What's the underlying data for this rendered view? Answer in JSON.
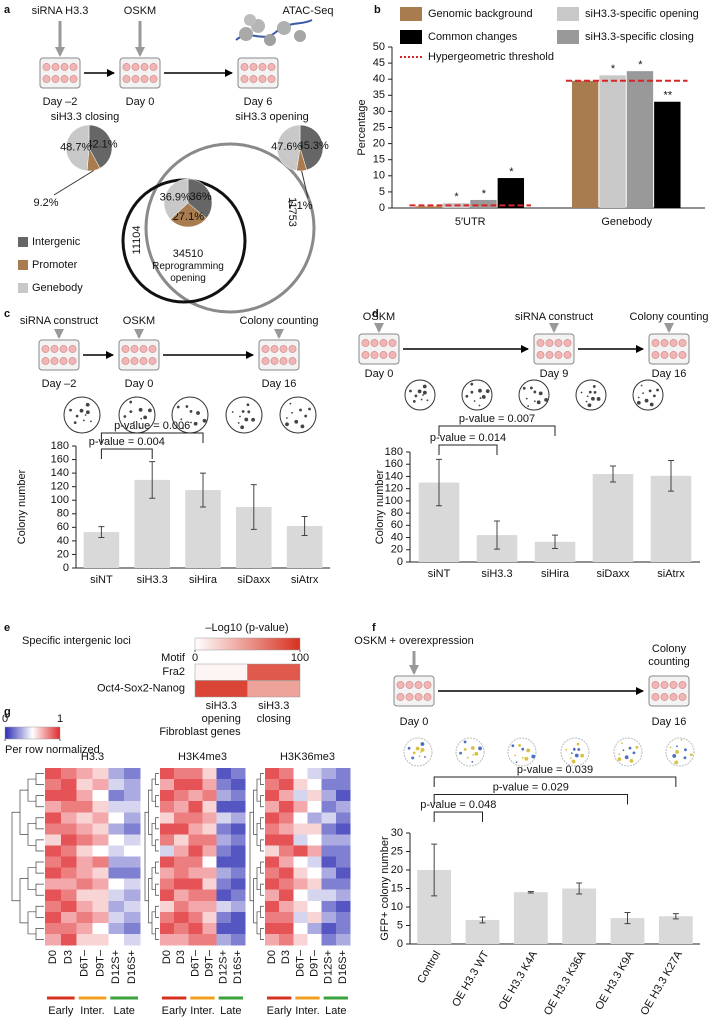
{
  "chart_data": [
    {
      "panel": "a",
      "type": "pie",
      "timeline": [
        {
          "label": "siRNA H3.3",
          "day": "Day –2",
          "color": "#e0402f"
        },
        {
          "label": "OSKM",
          "day": "Day 0",
          "color": "#e0402f"
        },
        {
          "label": "ATAC-Seq",
          "day": "Day 6",
          "color": "#f0a020"
        }
      ],
      "categories": [
        "Intergenic",
        "Promoter",
        "Genebody"
      ],
      "colors": [
        "#666666",
        "#a87c4f",
        "#c8c8c8"
      ],
      "pies": [
        {
          "title": "siH3.3 closing",
          "values": [
            42.1,
            9.2,
            48.7
          ],
          "value_labels": [
            "42.1%",
            "9.2%",
            "48.7%"
          ]
        },
        {
          "title": "siH3.3 opening",
          "values": [
            45.3,
            7.1,
            47.6
          ],
          "value_labels": [
            "45.3%",
            "7.1%",
            "47.6%"
          ]
        },
        {
          "values": [
            36,
            27.1,
            36.9
          ],
          "value_labels": [
            "36%",
            "27.1%",
            "36.9%"
          ]
        }
      ],
      "venn": {
        "counts": [
          11104,
          34510,
          11753
        ],
        "label": "Reprogramming opening"
      }
    },
    {
      "panel": "b",
      "type": "bar",
      "categories": [
        "5′UTR",
        "Genebody"
      ],
      "ylabel": "Percentage",
      "ylim": [
        0,
        50
      ],
      "yticks": [
        0,
        5,
        10,
        15,
        20,
        25,
        30,
        35,
        40,
        45,
        50
      ],
      "series": [
        {
          "name": "Genomic background",
          "color": "#a87c4f",
          "values": [
            0.5,
            39.5
          ]
        },
        {
          "name": "siH3.3-specific opening",
          "color": "#c8c8c8",
          "values": [
            1.5,
            41.2
          ],
          "significance": [
            "*",
            "*"
          ]
        },
        {
          "name": "siH3.3-specific closing",
          "color": "#999999",
          "values": [
            2.5,
            42.5
          ],
          "significance": [
            "*",
            "*"
          ]
        },
        {
          "name": "Common changes",
          "color": "#000000",
          "values": [
            9.3,
            33
          ],
          "significance": [
            "*",
            "**"
          ]
        }
      ],
      "threshold": {
        "name": "Hypergeometric threshold",
        "color": "#d62728",
        "values": [
          0.8,
          39.5
        ]
      }
    },
    {
      "panel": "c",
      "type": "bar",
      "timeline": [
        {
          "label": "siRNA construct",
          "day": "Day –2",
          "color": "#e0402f"
        },
        {
          "label": "OSKM",
          "day": "Day 0",
          "color": "#e0402f"
        },
        {
          "label": "Colony counting",
          "day": "Day 16",
          "color": "#3aa23a"
        }
      ],
      "categories": [
        "siNT",
        "siH3.3",
        "siHira",
        "siDaxx",
        "siAtrx"
      ],
      "values": [
        53,
        130,
        115,
        90,
        62
      ],
      "errors": [
        8,
        27,
        25,
        33,
        14
      ],
      "color": "#d9d9d9",
      "ylabel": "Colony number",
      "ylim": [
        0,
        180
      ],
      "yticks": [
        0,
        20,
        40,
        60,
        80,
        100,
        120,
        140,
        160,
        180
      ],
      "comparisons": [
        {
          "label": "p-value = 0.006",
          "from": "siNT",
          "to": "siHira"
        },
        {
          "label": "p-value = 0.004",
          "from": "siNT",
          "to": "siH3.3"
        }
      ]
    },
    {
      "panel": "d",
      "type": "bar",
      "timeline": [
        {
          "label": "OSKM",
          "day": "Day 0",
          "color": "#e0402f"
        },
        {
          "label": "siRNA construct",
          "day": "Day 9",
          "color": "#f0a020"
        },
        {
          "label": "Colony counting",
          "day": "Day 16",
          "color": "#3aa23a"
        }
      ],
      "categories": [
        "siNT",
        "siH3.3",
        "siHira",
        "siDaxx",
        "siAtrx"
      ],
      "values": [
        130,
        44,
        33,
        144,
        141
      ],
      "errors": [
        38,
        23,
        11,
        13,
        25
      ],
      "color": "#d9d9d9",
      "ylabel": "Colony number",
      "ylim": [
        0,
        180
      ],
      "yticks": [
        0,
        20,
        40,
        60,
        80,
        100,
        120,
        140,
        160,
        180
      ],
      "comparisons": [
        {
          "label": "p-value = 0.007",
          "from": "siNT",
          "to": "siHira"
        },
        {
          "label": "p-value = 0.014",
          "from": "siNT",
          "to": "siH3.3"
        }
      ]
    },
    {
      "panel": "e",
      "type": "heatmap",
      "title": "Specific intergenic loci",
      "colorbar_label": "–Log10 (p-value)",
      "clim": [
        0,
        100
      ],
      "cticks": [
        0,
        100
      ],
      "colors": [
        "#ffffff",
        "#d7301f"
      ],
      "row_header": "Motif",
      "rows": [
        "Fra2",
        "Oct4-Sox2-Nanog"
      ],
      "columns": [
        "siH3.3 opening",
        "siH3.3 closing"
      ],
      "values": [
        [
          5,
          80
        ],
        [
          90,
          45
        ]
      ]
    },
    {
      "panel": "f",
      "type": "bar",
      "timeline": [
        {
          "label": "OSKM + overexpression",
          "day": "Day 0",
          "color": "#e0402f"
        },
        {
          "label": "Colony counting",
          "day": "Day 16",
          "color": "#3aa23a"
        }
      ],
      "categories": [
        "Control",
        "OE H3.3 WT",
        "OE H3.3 K4A",
        "OE H3.3 K36A",
        "OE H3.3 K9A",
        "OE H3.3 K27A"
      ],
      "values": [
        20,
        6.5,
        14,
        15,
        7,
        7.5
      ],
      "errors": [
        7,
        0.8,
        0.2,
        1.5,
        1.5,
        0.7
      ],
      "color": "#d9d9d9",
      "ylabel": "GFP+ colony number",
      "ylim": [
        0,
        30
      ],
      "yticks": [
        0,
        5,
        10,
        15,
        20,
        25,
        30
      ],
      "comparisons": [
        {
          "label": "p-value = 0.039",
          "from": "Control",
          "to": "OE H3.3 K27A"
        },
        {
          "label": "p-value = 0.029",
          "from": "Control",
          "to": "OE H3.3 K9A"
        },
        {
          "label": "p-value = 0.048",
          "from": "Control",
          "to": "OE H3.3 WT"
        }
      ]
    },
    {
      "panel": "g",
      "type": "heatmap",
      "title": "Fibroblast genes",
      "colorbar_label": "Per row normalized",
      "clim": [
        0,
        1
      ],
      "cticks": [
        0,
        1
      ],
      "colors": [
        "#2c2cb4",
        "#ffffff",
        "#e0282c"
      ],
      "columns": [
        "D0",
        "D3",
        "D6T–",
        "D9T–",
        "D12S+",
        "D16S+"
      ],
      "groups": [
        {
          "name": "Early",
          "color": "#d7301f",
          "columns": [
            "D0",
            "D3"
          ]
        },
        {
          "name": "Inter.",
          "color": "#f0a020",
          "columns": [
            "D6T–",
            "D9T–"
          ]
        },
        {
          "name": "Late",
          "color": "#3aa23a",
          "columns": [
            "D12S+",
            "D16S+"
          ]
        }
      ],
      "panels": [
        {
          "title": "H3.3",
          "values": [
            [
              0.9,
              0.8,
              0.7,
              0.6,
              0.3,
              0.2
            ],
            [
              0.8,
              0.9,
              0.6,
              0.7,
              0.4,
              0.3
            ],
            [
              0.9,
              0.9,
              0.7,
              0.5,
              0.2,
              0.3
            ],
            [
              0.7,
              0.8,
              0.8,
              0.6,
              0.4,
              0.4
            ],
            [
              0.9,
              0.7,
              0.6,
              0.7,
              0.5,
              0.3
            ],
            [
              0.8,
              0.8,
              0.7,
              0.6,
              0.3,
              0.2
            ],
            [
              0.6,
              0.9,
              0.8,
              0.7,
              0.5,
              0.4
            ],
            [
              0.9,
              0.8,
              0.6,
              0.5,
              0.4,
              0.5
            ],
            [
              0.8,
              0.9,
              0.7,
              0.8,
              0.3,
              0.3
            ],
            [
              0.9,
              0.8,
              0.7,
              0.6,
              0.2,
              0.2
            ],
            [
              0.7,
              0.7,
              0.8,
              0.7,
              0.5,
              0.4
            ],
            [
              0.9,
              0.8,
              0.6,
              0.6,
              0.4,
              0.3
            ],
            [
              0.8,
              0.9,
              0.7,
              0.6,
              0.3,
              0.4
            ],
            [
              0.9,
              0.7,
              0.8,
              0.7,
              0.4,
              0.3
            ],
            [
              0.8,
              0.8,
              0.7,
              0.5,
              0.3,
              0.2
            ],
            [
              0.7,
              0.9,
              0.6,
              0.6,
              0.5,
              0.4
            ]
          ]
        },
        {
          "title": "H3K4me3",
          "values": [
            [
              0.9,
              0.8,
              0.8,
              0.6,
              0.1,
              0.2
            ],
            [
              0.7,
              0.9,
              0.9,
              0.7,
              0.2,
              0.1
            ],
            [
              0.9,
              0.8,
              0.7,
              0.8,
              0.3,
              0.2
            ],
            [
              0.8,
              0.7,
              0.9,
              0.6,
              0.1,
              0.1
            ],
            [
              0.6,
              0.8,
              0.8,
              0.7,
              0.4,
              0.3
            ],
            [
              0.9,
              0.9,
              0.7,
              0.6,
              0.2,
              0.1
            ],
            [
              0.8,
              0.6,
              0.8,
              0.8,
              0.3,
              0.2
            ],
            [
              0.4,
              0.7,
              0.9,
              0.7,
              0.2,
              0.1
            ],
            [
              0.9,
              0.8,
              0.8,
              0.5,
              0.1,
              0.1
            ],
            [
              0.7,
              0.8,
              0.7,
              0.7,
              0.3,
              0.2
            ],
            [
              0.8,
              0.9,
              0.9,
              0.6,
              0.2,
              0.1
            ],
            [
              0.9,
              0.7,
              0.8,
              0.8,
              0.1,
              0.2
            ],
            [
              0.6,
              0.8,
              0.7,
              0.7,
              0.4,
              0.3
            ],
            [
              0.8,
              0.9,
              0.8,
              0.6,
              0.2,
              0.1
            ],
            [
              0.9,
              0.8,
              0.9,
              0.7,
              0.1,
              0.1
            ],
            [
              0.7,
              0.7,
              0.8,
              0.8,
              0.3,
              0.2
            ]
          ]
        },
        {
          "title": "H3K36me3",
          "values": [
            [
              0.9,
              0.8,
              0.5,
              0.4,
              0.3,
              0.2
            ],
            [
              0.8,
              0.9,
              0.6,
              0.5,
              0.2,
              0.2
            ],
            [
              0.9,
              0.7,
              0.4,
              0.6,
              0.3,
              0.1
            ],
            [
              0.7,
              0.9,
              0.7,
              0.5,
              0.2,
              0.3
            ],
            [
              0.9,
              0.8,
              0.5,
              0.3,
              0.4,
              0.2
            ],
            [
              0.8,
              0.7,
              0.6,
              0.6,
              0.2,
              0.1
            ],
            [
              0.9,
              0.9,
              0.4,
              0.5,
              0.3,
              0.3
            ],
            [
              0.6,
              0.8,
              0.9,
              0.7,
              0.2,
              0.2
            ],
            [
              0.9,
              0.7,
              0.5,
              0.4,
              0.1,
              0.2
            ],
            [
              0.8,
              0.9,
              0.6,
              0.5,
              0.3,
              0.1
            ],
            [
              0.9,
              0.8,
              0.7,
              0.6,
              0.2,
              0.2
            ],
            [
              0.7,
              0.9,
              0.5,
              0.4,
              0.4,
              0.3
            ],
            [
              0.9,
              0.7,
              0.6,
              0.5,
              0.2,
              0.1
            ],
            [
              0.8,
              0.8,
              0.4,
              0.6,
              0.3,
              0.2
            ],
            [
              0.9,
              0.9,
              0.5,
              0.3,
              0.1,
              0.2
            ],
            [
              0.7,
              0.8,
              0.6,
              0.5,
              0.2,
              0.3
            ]
          ]
        }
      ]
    }
  ]
}
